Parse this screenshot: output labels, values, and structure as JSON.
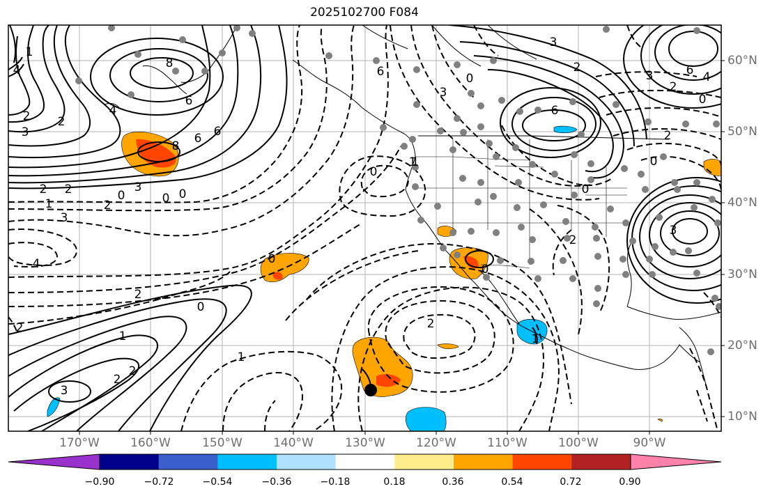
{
  "title": "2025102700 F084",
  "lat_labels": [
    "60°N",
    "50°N",
    "40°N",
    "30°N",
    "20°N",
    "10°N"
  ],
  "lon_labels": [
    "170°W",
    "160°W",
    "150°W",
    "140°W",
    "130°W",
    "120°W",
    "110°W",
    "100°W",
    "90°W"
  ],
  "contour_labels": [
    "1",
    "8",
    "6",
    "2",
    "2",
    "3",
    "4",
    "6",
    "8",
    "6",
    "4",
    "3",
    "0",
    "2",
    "2",
    "0",
    "1",
    "3",
    "2",
    "0",
    "0",
    "4",
    "2",
    "0",
    "1",
    "3",
    "2",
    "2",
    "1",
    "2",
    "0",
    "1",
    "6",
    "3",
    "0",
    "2",
    "6",
    "3",
    "2",
    "6",
    "3",
    "0",
    "2",
    "4",
    "2",
    "3",
    "0",
    "0",
    "2",
    "1",
    "0",
    "1"
  ],
  "colorbar": {
    "ticks": [
      "−0.90",
      "−0.72",
      "−0.54",
      "−0.36",
      "−0.18",
      "0.18",
      "0.36",
      "0.54",
      "0.72",
      "0.90"
    ],
    "colors": [
      "#9932cc",
      "#00008b",
      "#3a5fcd",
      "#00bfff",
      "#b0e2ff",
      "#ffffff",
      "#ffec8b",
      "#ffa500",
      "#ff4500",
      "#b22222",
      "#ff82ab"
    ]
  }
}
